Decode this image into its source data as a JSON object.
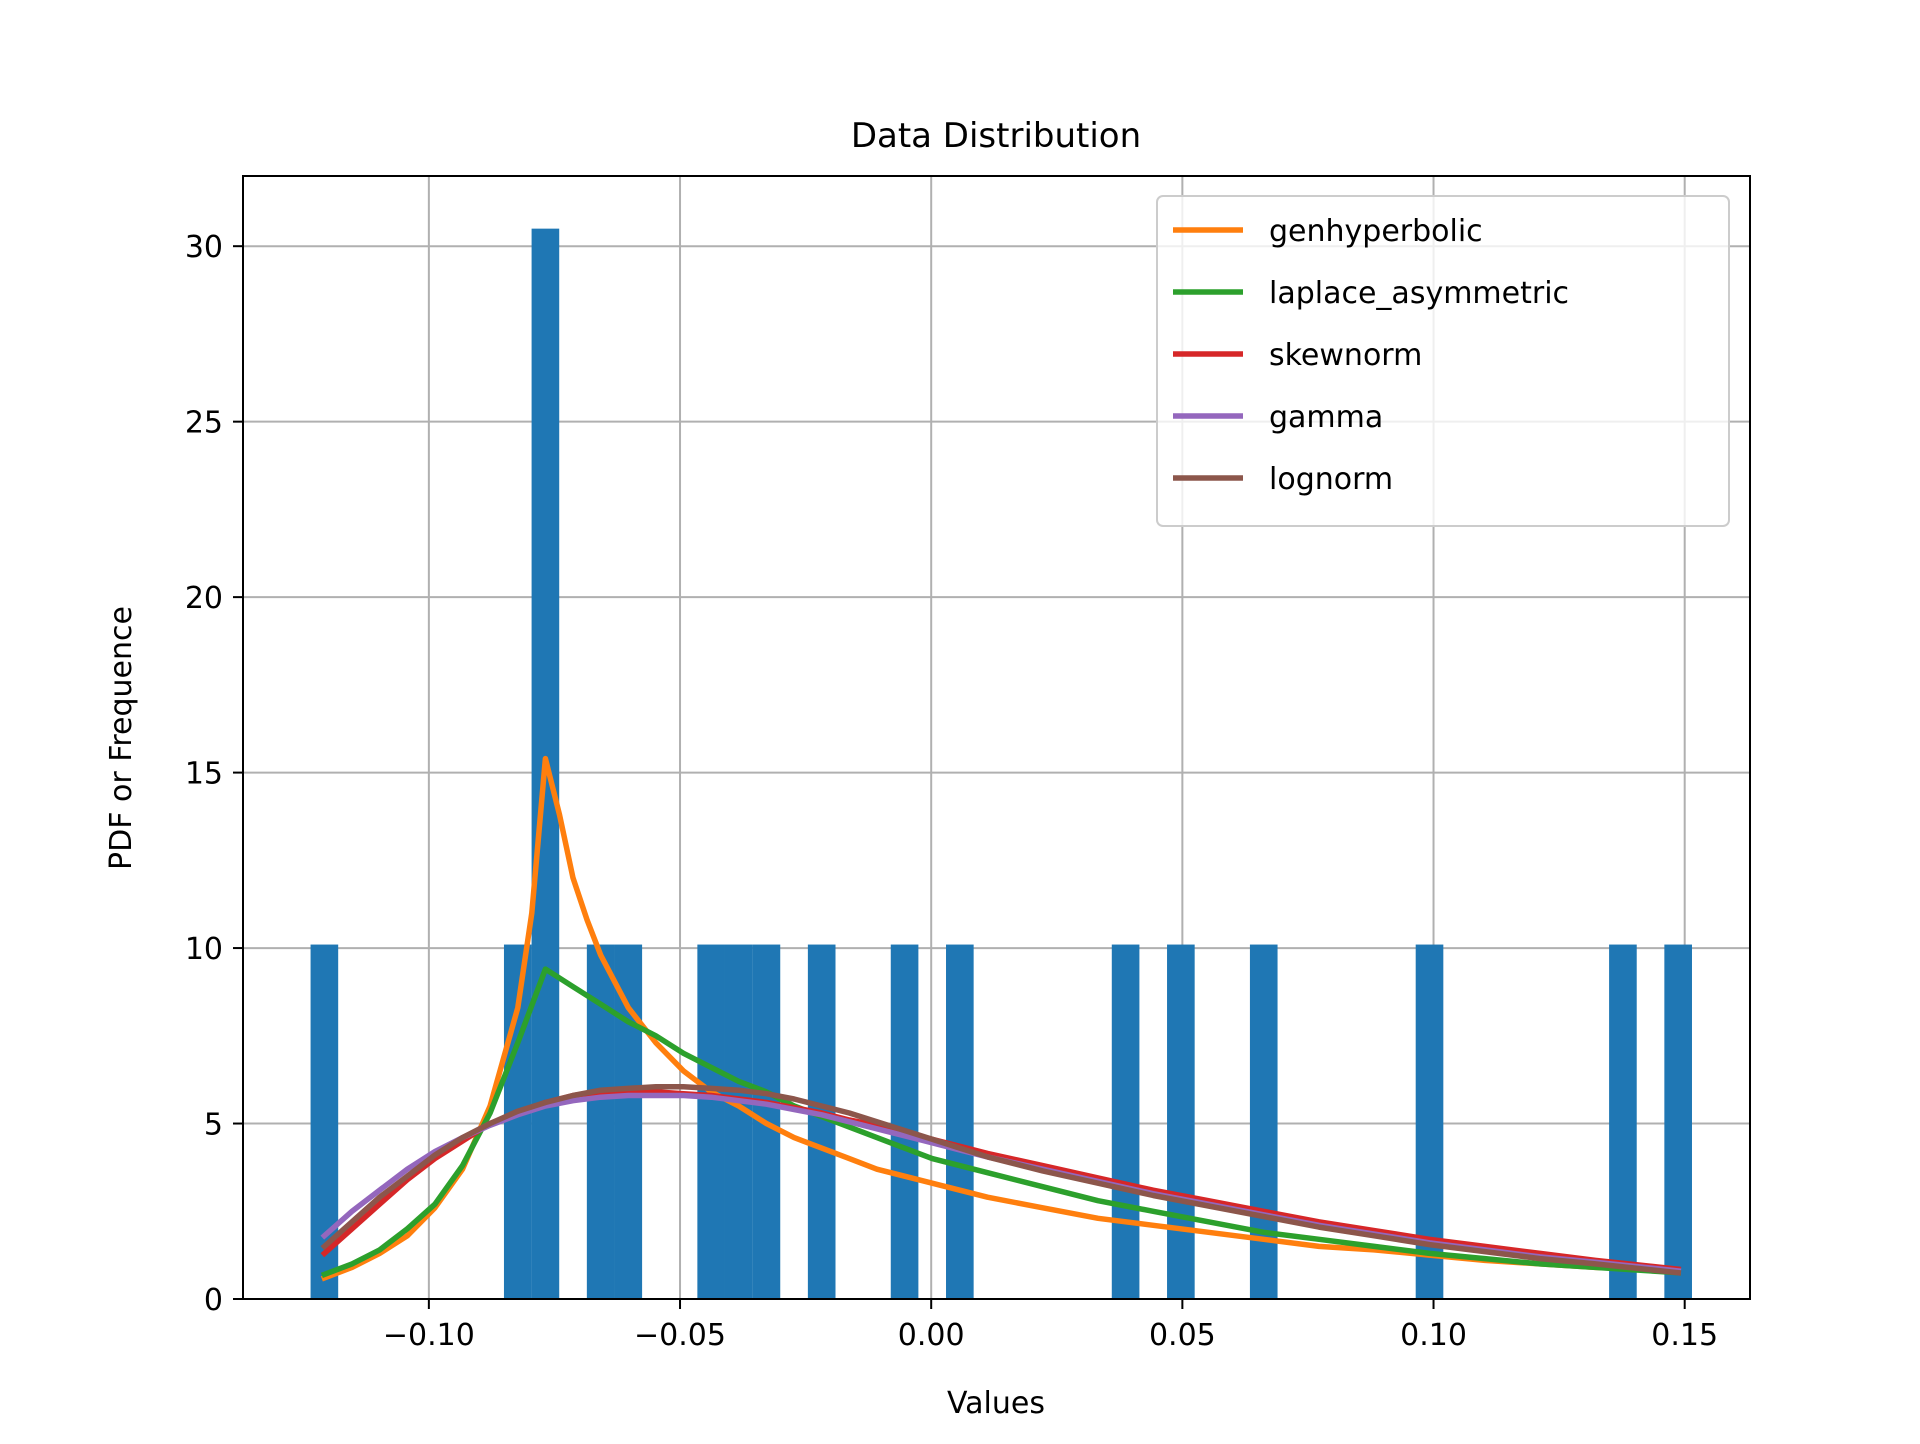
{
  "chart_data": {
    "type": "bar",
    "title": "Data Distribution",
    "xlabel": "Values",
    "ylabel": "PDF or Frequence",
    "xlim": [
      -0.137,
      0.163
    ],
    "ylim": [
      0,
      32
    ],
    "xticks": [
      -0.1,
      -0.05,
      0.0,
      0.05,
      0.1,
      0.15
    ],
    "xtick_labels": [
      "−0.10",
      "−0.05",
      "0.00",
      "0.05",
      "0.10",
      "0.15"
    ],
    "yticks": [
      0,
      5,
      10,
      15,
      20,
      25,
      30
    ],
    "ytick_labels": [
      "0",
      "5",
      "10",
      "15",
      "20",
      "25",
      "30"
    ],
    "grid": true,
    "legend_position": "top-right",
    "histogram": {
      "color": "#1f77b4",
      "bin_width": 0.0055,
      "bins": [
        {
          "x": -0.1208,
          "height": 10.1
        },
        {
          "x": -0.0823,
          "height": 10.1
        },
        {
          "x": -0.0768,
          "height": 30.5
        },
        {
          "x": -0.0658,
          "height": 10.1
        },
        {
          "x": -0.0603,
          "height": 10.1
        },
        {
          "x": -0.0438,
          "height": 10.1
        },
        {
          "x": -0.0383,
          "height": 10.1
        },
        {
          "x": -0.0328,
          "height": 10.1
        },
        {
          "x": -0.0218,
          "height": 10.1
        },
        {
          "x": -0.0053,
          "height": 10.1
        },
        {
          "x": 0.0057,
          "height": 10.1
        },
        {
          "x": 0.0387,
          "height": 10.1
        },
        {
          "x": 0.0497,
          "height": 10.1
        },
        {
          "x": 0.0662,
          "height": 10.1
        },
        {
          "x": 0.0992,
          "height": 10.1
        },
        {
          "x": 0.1377,
          "height": 10.1
        },
        {
          "x": 0.1487,
          "height": 10.1
        }
      ]
    },
    "series": [
      {
        "name": "genhyperbolic",
        "color": "#ff7f0e",
        "x": [
          -0.1208,
          -0.1153,
          -0.1098,
          -0.1043,
          -0.0988,
          -0.0933,
          -0.0878,
          -0.0823,
          -0.0795,
          -0.0768,
          -0.074,
          -0.0713,
          -0.0685,
          -0.0658,
          -0.0603,
          -0.0548,
          -0.0493,
          -0.0438,
          -0.0383,
          -0.0328,
          -0.0273,
          -0.0218,
          -0.0163,
          -0.0108,
          -0.0053,
          0.0002,
          0.0057,
          0.0112,
          0.0222,
          0.0332,
          0.0442,
          0.0552,
          0.0662,
          0.0772,
          0.0882,
          0.0992,
          0.1102,
          0.1212,
          0.1322,
          0.1432,
          0.1487
        ],
        "y": [
          0.6,
          0.9,
          1.3,
          1.8,
          2.6,
          3.7,
          5.5,
          8.3,
          11.0,
          15.4,
          13.8,
          12.0,
          10.8,
          9.8,
          8.3,
          7.3,
          6.5,
          5.9,
          5.5,
          5.0,
          4.6,
          4.3,
          4.0,
          3.7,
          3.5,
          3.3,
          3.1,
          2.9,
          2.6,
          2.3,
          2.1,
          1.9,
          1.7,
          1.5,
          1.4,
          1.25,
          1.1,
          1.0,
          0.9,
          0.85,
          0.8
        ]
      },
      {
        "name": "laplace_asymmetric",
        "color": "#2ca02c",
        "x": [
          -0.1208,
          -0.1153,
          -0.1098,
          -0.1043,
          -0.0988,
          -0.0933,
          -0.0878,
          -0.0823,
          -0.0768,
          -0.0713,
          -0.0658,
          -0.0603,
          -0.0548,
          -0.0493,
          -0.0438,
          -0.0383,
          -0.0328,
          -0.0273,
          -0.0218,
          -0.0108,
          0.0002,
          0.0112,
          0.0222,
          0.0332,
          0.0442,
          0.0552,
          0.0662,
          0.0772,
          0.0882,
          0.0992,
          0.1102,
          0.1212,
          0.1322,
          0.1487
        ],
        "y": [
          0.7,
          1.0,
          1.4,
          2.0,
          2.7,
          3.8,
          5.3,
          7.3,
          9.4,
          8.9,
          8.4,
          7.9,
          7.5,
          7.0,
          6.6,
          6.2,
          5.9,
          5.5,
          5.2,
          4.6,
          4.0,
          3.6,
          3.2,
          2.8,
          2.5,
          2.2,
          1.9,
          1.7,
          1.5,
          1.3,
          1.15,
          1.0,
          0.9,
          0.75
        ]
      },
      {
        "name": "skewnorm",
        "color": "#d62728",
        "x": [
          -0.1208,
          -0.1153,
          -0.1098,
          -0.1043,
          -0.0988,
          -0.0933,
          -0.0878,
          -0.0823,
          -0.0768,
          -0.0713,
          -0.0658,
          -0.0603,
          -0.0548,
          -0.0493,
          -0.0438,
          -0.0383,
          -0.0328,
          -0.0273,
          -0.0218,
          -0.0163,
          -0.0108,
          -0.0053,
          0.0002,
          0.0057,
          0.0112,
          0.0222,
          0.0332,
          0.0442,
          0.0552,
          0.0662,
          0.0772,
          0.0882,
          0.0992,
          0.1102,
          0.1212,
          0.1322,
          0.1487
        ],
        "y": [
          1.3,
          2.0,
          2.7,
          3.4,
          4.0,
          4.5,
          5.0,
          5.3,
          5.6,
          5.8,
          5.9,
          5.9,
          5.9,
          5.85,
          5.8,
          5.7,
          5.6,
          5.45,
          5.3,
          5.1,
          4.95,
          4.75,
          4.55,
          4.35,
          4.15,
          3.8,
          3.45,
          3.1,
          2.8,
          2.5,
          2.2,
          1.95,
          1.7,
          1.5,
          1.3,
          1.1,
          0.85
        ]
      },
      {
        "name": "gamma",
        "color": "#9467bd",
        "x": [
          -0.1208,
          -0.1153,
          -0.1098,
          -0.1043,
          -0.0988,
          -0.0933,
          -0.0878,
          -0.0823,
          -0.0768,
          -0.0713,
          -0.0658,
          -0.0603,
          -0.0548,
          -0.0493,
          -0.0438,
          -0.0383,
          -0.0328,
          -0.0273,
          -0.0218,
          -0.0163,
          -0.0108,
          -0.0053,
          0.0002,
          0.0057,
          0.0112,
          0.0222,
          0.0332,
          0.0442,
          0.0552,
          0.0662,
          0.0772,
          0.0882,
          0.0992,
          0.1102,
          0.1212,
          0.1322,
          0.1487
        ],
        "y": [
          1.8,
          2.5,
          3.1,
          3.7,
          4.2,
          4.6,
          4.95,
          5.25,
          5.5,
          5.65,
          5.75,
          5.8,
          5.8,
          5.8,
          5.75,
          5.65,
          5.55,
          5.4,
          5.25,
          5.05,
          4.85,
          4.65,
          4.45,
          4.25,
          4.05,
          3.7,
          3.35,
          3.0,
          2.7,
          2.4,
          2.1,
          1.85,
          1.6,
          1.4,
          1.2,
          1.05,
          0.8
        ]
      },
      {
        "name": "lognorm",
        "color": "#8c564b",
        "x": [
          -0.1208,
          -0.1153,
          -0.1098,
          -0.1043,
          -0.0988,
          -0.0933,
          -0.0878,
          -0.0823,
          -0.0768,
          -0.0713,
          -0.0658,
          -0.0603,
          -0.0548,
          -0.0493,
          -0.0438,
          -0.0383,
          -0.0328,
          -0.0273,
          -0.0218,
          -0.0163,
          -0.0108,
          -0.0053,
          0.0002,
          0.0057,
          0.0112,
          0.0222,
          0.0332,
          0.0442,
          0.0552,
          0.0662,
          0.0772,
          0.0882,
          0.0992,
          0.1102,
          0.1212,
          0.1322,
          0.1487
        ],
        "y": [
          1.5,
          2.2,
          2.9,
          3.5,
          4.1,
          4.6,
          5.0,
          5.35,
          5.6,
          5.8,
          5.95,
          6.0,
          6.05,
          6.05,
          6.0,
          5.95,
          5.85,
          5.7,
          5.5,
          5.3,
          5.05,
          4.8,
          4.55,
          4.3,
          4.05,
          3.65,
          3.3,
          2.95,
          2.65,
          2.35,
          2.05,
          1.8,
          1.55,
          1.35,
          1.15,
          1.0,
          0.75
        ]
      }
    ]
  }
}
